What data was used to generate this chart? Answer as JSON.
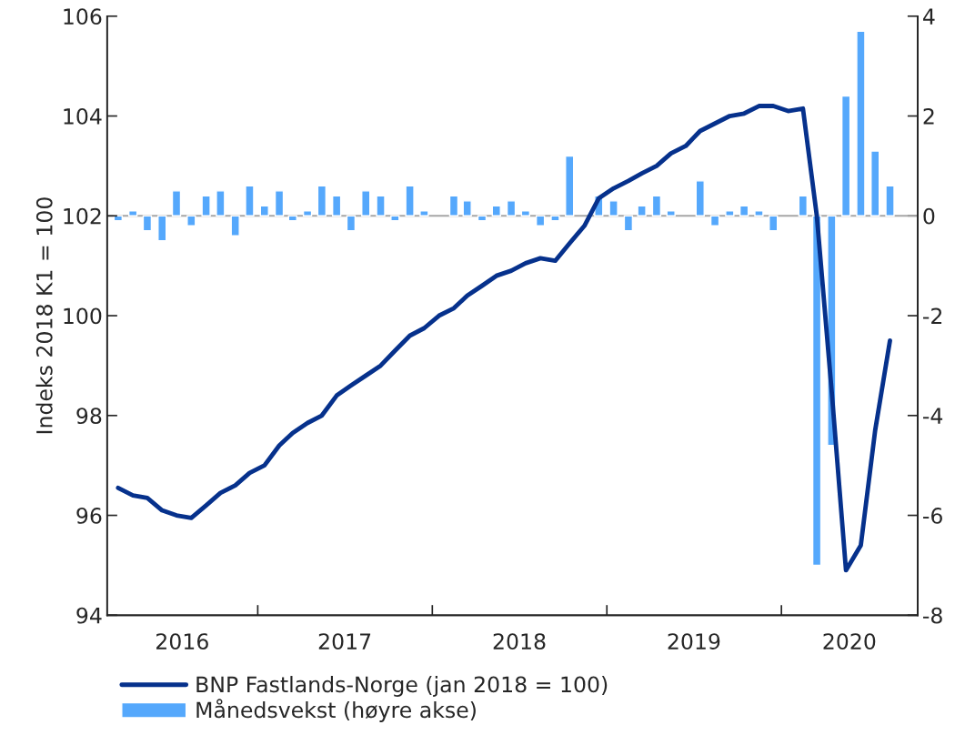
{
  "chart_data": {
    "type": "line",
    "ylabel": "Indeks 2018 K1 = 100",
    "x": [
      "2016-03-15",
      "2016-04-15",
      "2016-05-15",
      "2016-06-15",
      "2016-07-15",
      "2016-08-15",
      "2016-09-15",
      "2016-10-15",
      "2016-11-15",
      "2016-12-15",
      "2017-01-15",
      "2017-02-15",
      "2017-03-15",
      "2017-04-15",
      "2017-05-15",
      "2017-06-15",
      "2017-07-15",
      "2017-08-15",
      "2017-09-15",
      "2017-10-15",
      "2017-11-15",
      "2017-12-15",
      "2018-01-15",
      "2018-02-15",
      "2018-03-15",
      "2018-04-15",
      "2018-05-15",
      "2018-06-15",
      "2018-07-15",
      "2018-08-15",
      "2018-09-15",
      "2018-10-15",
      "2018-11-15",
      "2018-12-15",
      "2019-01-15",
      "2019-02-15",
      "2019-03-15",
      "2019-04-15",
      "2019-05-15",
      "2019-06-15",
      "2019-07-15",
      "2019-08-15",
      "2019-09-15",
      "2019-10-15",
      "2019-11-15",
      "2019-12-15",
      "2020-01-15",
      "2020-02-15",
      "2020-03-15",
      "2020-04-15",
      "2020-05-15",
      "2020-06-15",
      "2020-07-15",
      "2020-08-15"
    ],
    "series": [
      {
        "name": "BNP Fastlands-Norge (jan 2018 = 100)",
        "color": "#06318c",
        "values": [
          96.55,
          96.4,
          96.35,
          96.1,
          96.0,
          95.95,
          96.2,
          96.45,
          96.6,
          96.85,
          97.0,
          97.4,
          97.65,
          97.85,
          98.0,
          98.4,
          98.6,
          98.8,
          99.0,
          99.3,
          99.6,
          99.75,
          100.0,
          100.15,
          100.4,
          100.6,
          100.8,
          100.9,
          101.05,
          101.15,
          101.1,
          101.45,
          101.8,
          102.35,
          102.55,
          102.7,
          102.85,
          103.0,
          103.25,
          103.4,
          103.7,
          103.85,
          104.0,
          104.05,
          104.2,
          104.2,
          104.1,
          104.15,
          102.0,
          98.5,
          94.9,
          95.4,
          97.7,
          99.5
        ]
      },
      {
        "name": "Månedsvekst (høyre akse)",
        "type": "bar",
        "axis": "y2",
        "color": "#55a8fc",
        "values": [
          -0.1,
          0.1,
          -0.3,
          -0.5,
          0.5,
          -0.2,
          0.4,
          0.5,
          -0.4,
          0.6,
          0.2,
          0.5,
          -0.1,
          0.1,
          0.6,
          0.4,
          -0.3,
          0.5,
          0.4,
          -0.1,
          0.6,
          0.1,
          null,
          0.4,
          0.3,
          -0.1,
          0.2,
          0.3,
          0.1,
          -0.2,
          -0.1,
          1.2,
          null,
          0.4,
          0.3,
          -0.3,
          0.2,
          0.4,
          0.1,
          null,
          0.7,
          -0.2,
          0.1,
          0.2,
          0.1,
          -0.3,
          null,
          0.4,
          -7.0,
          -4.6,
          2.4,
          3.7,
          1.3,
          0.6
        ]
      }
    ],
    "xlim": [
      "2016-02-21",
      "2020-10-12"
    ],
    "xticks": [
      {
        "value": "2016-07-27",
        "label": "2016"
      },
      {
        "value": "2017",
        "label": null
      },
      {
        "value": "2017-07-02",
        "label": "2017"
      },
      {
        "value": "2018",
        "label": null
      },
      {
        "value": "2018-07-02",
        "label": "2018"
      },
      {
        "value": "2019",
        "label": null
      },
      {
        "value": "2019-07-02",
        "label": "2019"
      },
      {
        "value": "2020",
        "label": null
      },
      {
        "value": "2020-05-22",
        "label": "2020"
      }
    ],
    "ylim": [
      94,
      106
    ],
    "yticks": [
      94,
      96,
      98,
      100,
      102,
      104,
      106
    ],
    "y2lim": [
      -8,
      4
    ],
    "y2ticks": [
      -8,
      -6,
      -4,
      -2,
      0,
      2,
      4
    ],
    "ref_lines": [
      {
        "axis": "y2",
        "value": 0,
        "color": "#a6a6a6"
      }
    ],
    "grid": false,
    "legend": "bottom"
  }
}
